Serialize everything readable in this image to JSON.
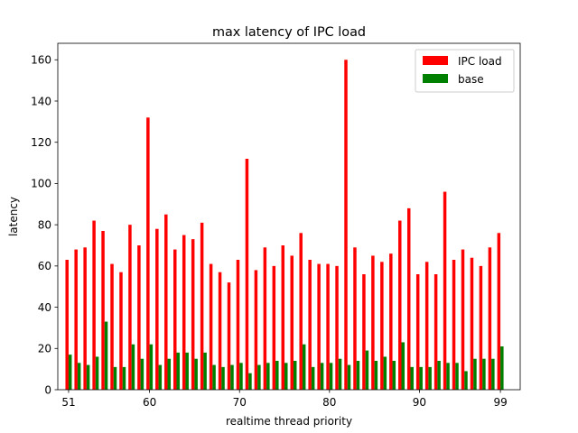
{
  "chart_data": {
    "type": "bar",
    "title": "max latency of IPC load",
    "xlabel": "realtime thread priority",
    "ylabel": "latency",
    "x": [
      51,
      52,
      53,
      54,
      55,
      56,
      57,
      58,
      59,
      60,
      61,
      62,
      63,
      64,
      65,
      66,
      67,
      68,
      69,
      70,
      71,
      72,
      73,
      74,
      75,
      76,
      77,
      78,
      79,
      80,
      81,
      82,
      83,
      84,
      85,
      86,
      87,
      88,
      89,
      90,
      91,
      92,
      93,
      94,
      95,
      96,
      97,
      98,
      99
    ],
    "xlim": [
      49.8,
      101.2
    ],
    "ylim": [
      0,
      168
    ],
    "xticks": [
      51,
      60,
      70,
      80,
      90,
      99
    ],
    "yticks": [
      0,
      20,
      40,
      60,
      80,
      100,
      120,
      140,
      160
    ],
    "legend": "top-right",
    "series": [
      {
        "name": "IPC load",
        "color": "#ff0000",
        "values": [
          63,
          68,
          69,
          82,
          77,
          61,
          57,
          80,
          70,
          132,
          78,
          85,
          68,
          75,
          73,
          81,
          61,
          57,
          52,
          63,
          112,
          58,
          69,
          60,
          70,
          65,
          76,
          63,
          61,
          61,
          60,
          160,
          69,
          56,
          65,
          62,
          66,
          82,
          88,
          56,
          62,
          56,
          96,
          63,
          68,
          64,
          60,
          69,
          76
        ]
      },
      {
        "name": "base",
        "color": "#008000",
        "values": [
          17,
          13,
          12,
          16,
          33,
          11,
          11,
          22,
          15,
          22,
          12,
          15,
          18,
          18,
          15,
          18,
          12,
          11,
          12,
          13,
          8,
          12,
          13,
          14,
          13,
          14,
          22,
          11,
          13,
          13,
          15,
          12,
          14,
          19,
          14,
          16,
          14,
          23,
          11,
          11,
          11,
          14,
          13,
          13,
          9,
          15,
          15,
          15,
          21
        ]
      }
    ]
  }
}
